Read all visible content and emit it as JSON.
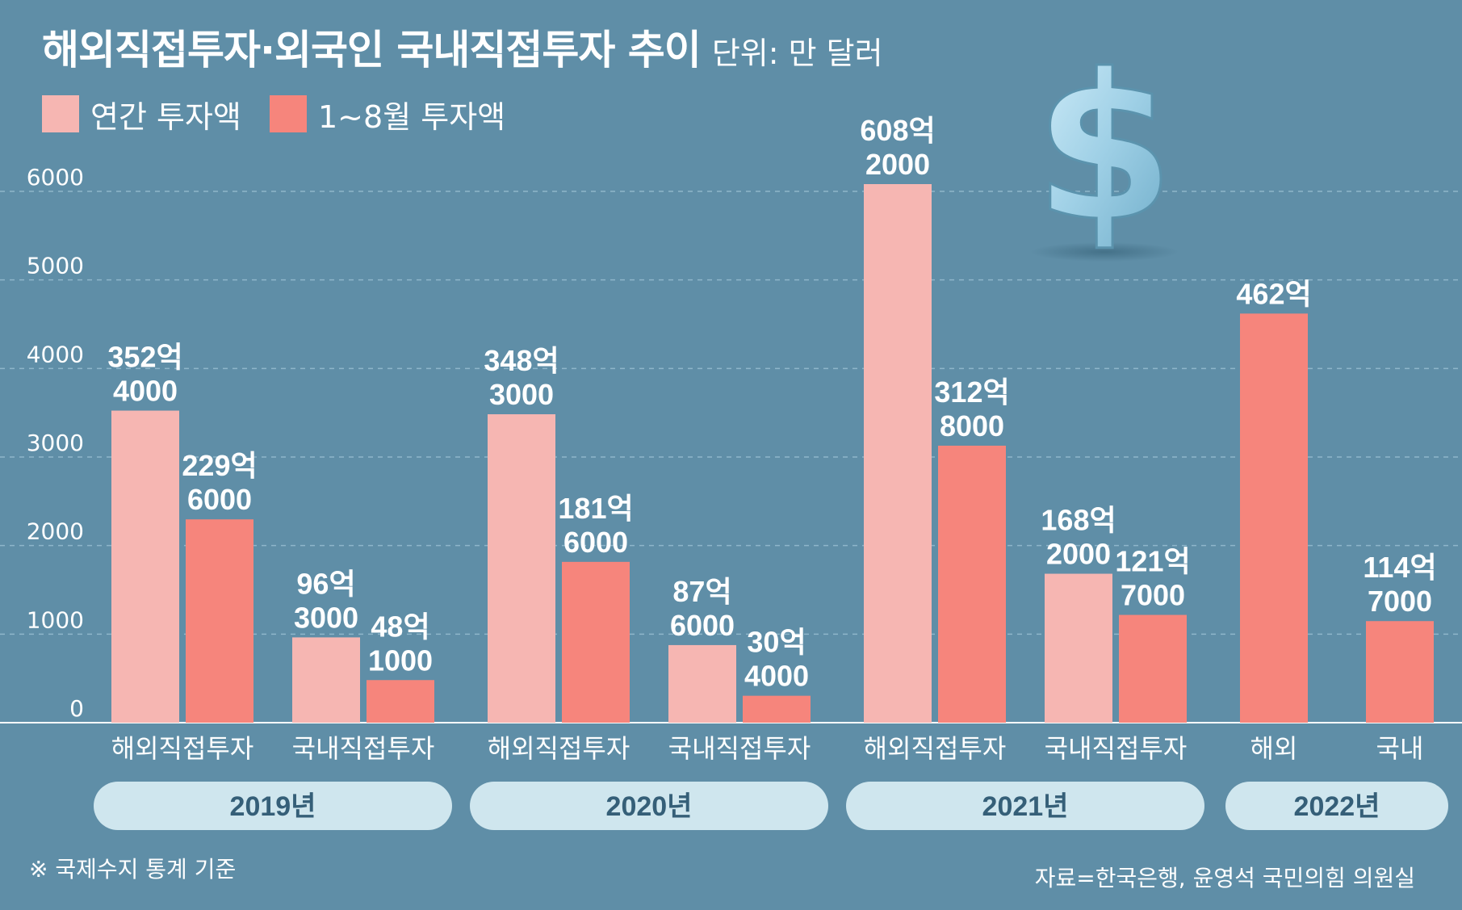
{
  "title": "해외직접투자·외국인 국내직접투자 추이",
  "unit": "단위: 만 달러",
  "footnote": "※ 국제수지 통계 기준",
  "source": "자료=한국은행, 윤영석 국민의힘 의원실",
  "icon": "dollar-sign-icon",
  "colors": {
    "background": "#5f8ea7",
    "annual": "#f6b6b2",
    "jan_aug": "#f6857c",
    "year_pill": "#cfe6ee",
    "year_text": "#355f78",
    "dollar": "#9fd0e6"
  },
  "chart_data": {
    "type": "bar",
    "legend": [
      "연간 투자액",
      "1~8월 투자액"
    ],
    "legend_position": "top-left",
    "y_ticks": [
      "0",
      "1000",
      "2000",
      "3000",
      "4000",
      "5000",
      "6000"
    ],
    "ylim": [
      0,
      6200
    ],
    "grid": true,
    "groups": [
      {
        "year": "2019년",
        "categories": [
          {
            "label": "해외직접투자",
            "bars": [
              {
                "series": "연간 투자액",
                "value": 35240000,
                "label_top": "352억",
                "label_bottom": "4000"
              },
              {
                "series": "1~8월 투자액",
                "value": 22960000,
                "label_top": "229억",
                "label_bottom": "6000"
              }
            ]
          },
          {
            "label": "국내직접투자",
            "bars": [
              {
                "series": "연간 투자액",
                "value": 9630000,
                "label_top": "96억",
                "label_bottom": "3000"
              },
              {
                "series": "1~8월 투자액",
                "value": 4810000,
                "label_top": "48억",
                "label_bottom": "1000"
              }
            ]
          }
        ]
      },
      {
        "year": "2020년",
        "categories": [
          {
            "label": "해외직접투자",
            "bars": [
              {
                "series": "연간 투자액",
                "value": 34830000,
                "label_top": "348억",
                "label_bottom": "3000"
              },
              {
                "series": "1~8월 투자액",
                "value": 18160000,
                "label_top": "181억",
                "label_bottom": "6000"
              }
            ]
          },
          {
            "label": "국내직접투자",
            "bars": [
              {
                "series": "연간 투자액",
                "value": 8760000,
                "label_top": "87억",
                "label_bottom": "6000"
              },
              {
                "series": "1~8월 투자액",
                "value": 3040000,
                "label_top": "30억",
                "label_bottom": "4000"
              }
            ]
          }
        ]
      },
      {
        "year": "2021년",
        "categories": [
          {
            "label": "해외직접투자",
            "bars": [
              {
                "series": "연간 투자액",
                "value": 60820000,
                "label_top": "608억",
                "label_bottom": "2000"
              },
              {
                "series": "1~8월 투자액",
                "value": 31280000,
                "label_top": "312억",
                "label_bottom": "8000"
              }
            ]
          },
          {
            "label": "국내직접투자",
            "bars": [
              {
                "series": "연간 투자액",
                "value": 16820000,
                "label_top": "168억",
                "label_bottom": "2000"
              },
              {
                "series": "1~8월 투자액",
                "value": 12170000,
                "label_top": "121억",
                "label_bottom": "7000"
              }
            ]
          }
        ]
      },
      {
        "year": "2022년",
        "categories": [
          {
            "label": "해외",
            "bars": [
              {
                "series": "1~8월 투자액",
                "value": 46200000,
                "label_top": "462억",
                "label_bottom": ""
              }
            ]
          },
          {
            "label": "국내",
            "bars": [
              {
                "series": "1~8월 투자액",
                "value": 11470000,
                "label_top": "114억",
                "label_bottom": "7000"
              }
            ]
          }
        ]
      }
    ]
  }
}
